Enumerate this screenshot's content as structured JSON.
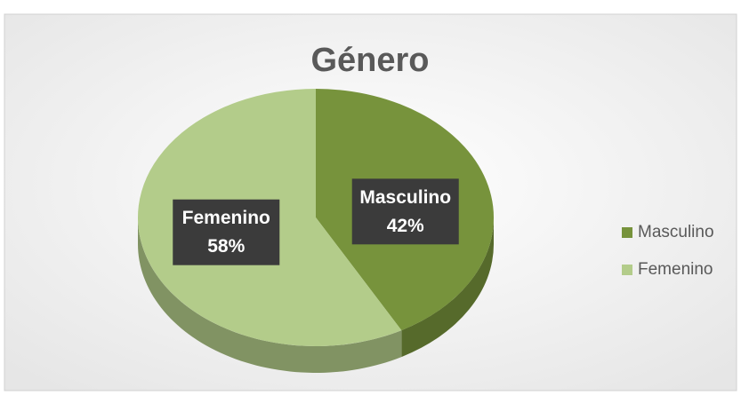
{
  "chart_data": {
    "type": "pie",
    "title": "Género",
    "categories": [
      "Masculino",
      "Femenino"
    ],
    "values": [
      42,
      58
    ],
    "value_labels": [
      "42%",
      "58%"
    ],
    "colors": [
      "#77933c",
      "#b3cc8a"
    ],
    "legend": "right"
  }
}
